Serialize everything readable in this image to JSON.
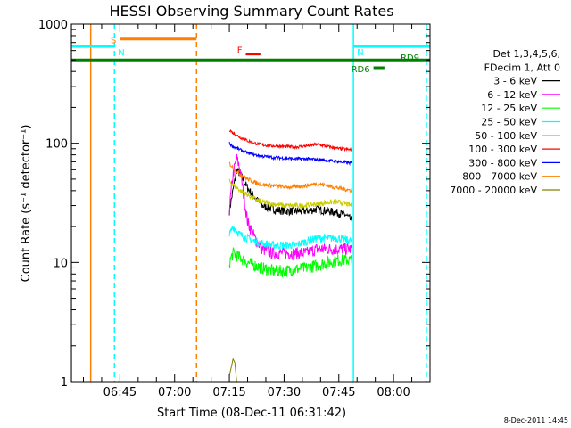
{
  "chart_data": {
    "type": "line",
    "title": "HESSI Observing Summary Count Rates",
    "xlabel": "Start Time (08-Dec-11 06:31:42)",
    "ylabel": "Count Rate (s⁻¹ detector⁻¹)",
    "x_tick_labels": [
      "06:45",
      "07:00",
      "07:15",
      "07:30",
      "07:45",
      "08:00"
    ],
    "x_tick_minutes": [
      405,
      420,
      435,
      450,
      465,
      480
    ],
    "xlim_minutes": [
      391.7,
      490
    ],
    "y_scale": "log",
    "ylim": [
      1,
      1000
    ],
    "y_tick_labels": [
      "1",
      "10",
      "100",
      "1000"
    ],
    "y_tick_values": [
      1,
      10,
      100,
      1000
    ],
    "grid": false,
    "legend_placement": "right",
    "legend_header": [
      "Det 1,3,4,5,6,",
      "FDecim 1, Att 0"
    ],
    "series": [
      {
        "name": "3 - 6 keV",
        "color": "#000000",
        "t": [
          435,
          437,
          438,
          440,
          442,
          444,
          447,
          450,
          453,
          456,
          459,
          462,
          465,
          467,
          468.7
        ],
        "values": [
          27,
          60,
          55,
          42,
          35,
          30,
          28,
          27,
          27,
          27,
          28,
          27,
          26,
          25,
          22
        ]
      },
      {
        "name": "6 - 12 keV",
        "color": "#ff00ff",
        "t": [
          435,
          436,
          437,
          438,
          439,
          440,
          442,
          444,
          447,
          450,
          453,
          456,
          459,
          462,
          465,
          467,
          468.7
        ],
        "values": [
          28,
          55,
          75,
          60,
          35,
          22,
          16,
          13,
          12,
          12,
          12,
          12,
          13,
          13,
          13,
          13,
          13
        ]
      },
      {
        "name": "12 - 25 keV",
        "color": "#00ff00",
        "t": [
          435,
          436,
          438,
          440,
          442,
          444,
          447,
          450,
          453,
          456,
          459,
          462,
          465,
          467,
          468.7
        ],
        "values": [
          10,
          12,
          11,
          10,
          9.5,
          9,
          8.5,
          8.5,
          8.8,
          9,
          9.5,
          10,
          10.5,
          10.5,
          10.5
        ]
      },
      {
        "name": "25 - 50 keV",
        "color": "#00ffff",
        "t": [
          435,
          436,
          438,
          440,
          442,
          444,
          447,
          450,
          453,
          456,
          459,
          462,
          465,
          467,
          468.7
        ],
        "values": [
          17,
          20,
          17,
          16,
          15,
          14.5,
          14,
          14,
          14,
          15,
          16,
          16,
          16,
          15.5,
          15
        ]
      },
      {
        "name": "50 - 100 keV",
        "color": "#cccc00",
        "t": [
          435,
          436,
          438,
          440,
          442,
          444,
          447,
          450,
          453,
          456,
          459,
          462,
          465,
          467,
          468.7
        ],
        "values": [
          48,
          45,
          40,
          37,
          34,
          32,
          31,
          30,
          30,
          30,
          31,
          32,
          32,
          31,
          30
        ]
      },
      {
        "name": "100 - 300 keV",
        "color": "#ff0000",
        "t": [
          435,
          436,
          438,
          440,
          442,
          444,
          447,
          450,
          453,
          456,
          459,
          462,
          465,
          467,
          468.7
        ],
        "values": [
          130,
          122,
          112,
          105,
          100,
          97,
          95,
          94,
          93,
          95,
          98,
          94,
          90,
          89,
          88
        ]
      },
      {
        "name": "300 - 800 keV",
        "color": "#0000ff",
        "t": [
          435,
          436,
          438,
          440,
          442,
          444,
          447,
          450,
          453,
          456,
          459,
          462,
          465,
          467,
          468.7
        ],
        "values": [
          100,
          94,
          88,
          83,
          80,
          78,
          76,
          75,
          74,
          74,
          73,
          72,
          70,
          69,
          68
        ]
      },
      {
        "name": "800 - 7000 keV",
        "color": "#ff8000",
        "t": [
          435,
          436,
          438,
          440,
          442,
          444,
          447,
          450,
          453,
          456,
          459,
          462,
          465,
          467,
          468.7
        ],
        "values": [
          68,
          62,
          55,
          50,
          47,
          45,
          44,
          43,
          43,
          44,
          46,
          44,
          42,
          41,
          40
        ]
      },
      {
        "name": "7000 - 20000 keV",
        "color": "#808000",
        "t": [
          435,
          436,
          437
        ],
        "values": [
          1.0,
          1.9,
          1.0
        ]
      }
    ],
    "flags": [
      {
        "label": "S",
        "color": "#ff8000",
        "t_start": 405,
        "t_end": 426,
        "value": 750
      },
      {
        "label": "N",
        "color": "#00ffff",
        "t_start": 391.7,
        "t_end": 403.5,
        "value": 650
      },
      {
        "label": "N",
        "color": "#00ffff",
        "t_start": 469,
        "t_end": 490,
        "value": 650
      },
      {
        "label": "F",
        "color": "#ff0000",
        "t_start": 439.5,
        "t_end": 443.5,
        "value": 560
      },
      {
        "label": "RD9",
        "color": "#008000",
        "t_start": 391.7,
        "t_end": 490,
        "value": 500
      },
      {
        "label": "RD6",
        "color": "#008000",
        "t_start": 474.5,
        "t_end": 477.5,
        "value": 430
      }
    ],
    "event_lines": [
      {
        "color": "#ff8000",
        "style": "solid",
        "t": 397
      },
      {
        "color": "#00ffff",
        "style": "dashed",
        "t": 403.5
      },
      {
        "color": "#ff8000",
        "style": "dashed",
        "t": 426
      },
      {
        "color": "#00ffff",
        "style": "solid",
        "t": 469
      },
      {
        "color": "#00ffff",
        "style": "dashed",
        "t": 489
      },
      {
        "color": "#00ffff",
        "style": "solid",
        "t": 391.7
      }
    ]
  },
  "footer": {
    "date_note": "8-Dec-2011 14:45"
  }
}
